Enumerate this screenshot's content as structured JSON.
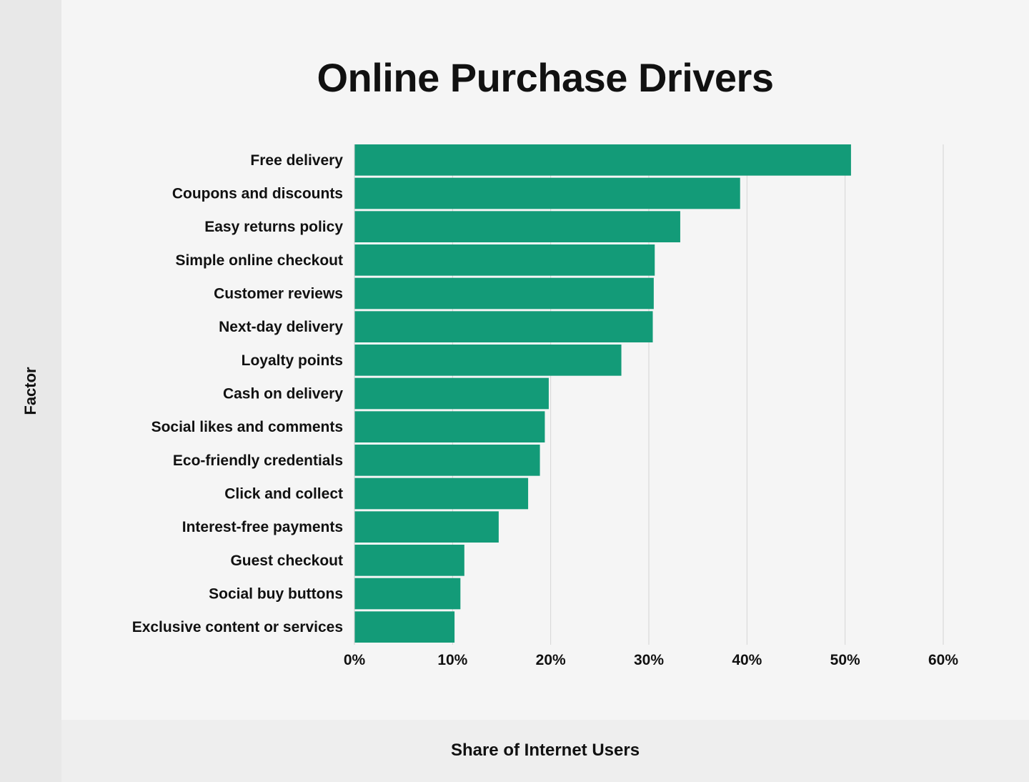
{
  "chart_data": {
    "type": "bar",
    "orientation": "horizontal",
    "title": "Online Purchase Drivers",
    "xlabel": "Share of Internet Users",
    "ylabel": "Factor",
    "xlim": [
      0,
      60
    ],
    "x_ticks": [
      "0%",
      "10%",
      "20%",
      "30%",
      "40%",
      "50%",
      "60%"
    ],
    "grid": "vertical",
    "bar_color": "#139b78",
    "categories": [
      "Free delivery",
      "Coupons and discounts",
      "Easy returns policy",
      "Simple online checkout",
      "Customer reviews",
      "Next-day delivery",
      "Loyalty points",
      "Cash on delivery",
      "Social likes and comments",
      "Eco-friendly credentials",
      "Click and collect",
      "Interest-free payments",
      "Guest checkout",
      "Social buy buttons",
      "Exclusive content or services"
    ],
    "values": [
      50.6,
      39.3,
      33.2,
      30.6,
      30.5,
      30.4,
      27.2,
      19.8,
      19.4,
      18.9,
      17.7,
      14.7,
      11.2,
      10.8,
      10.2
    ]
  }
}
